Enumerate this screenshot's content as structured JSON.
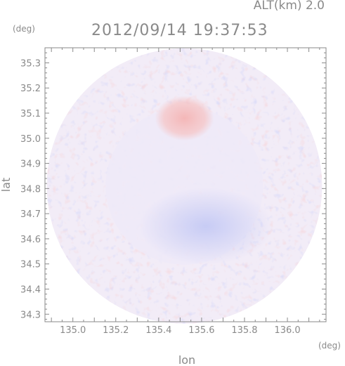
{
  "header": {
    "altitude_label": "ALT(km) 2.0",
    "timestamp": "2012/09/14 19:37:53"
  },
  "chart_data": {
    "type": "heatmap",
    "title": "2012/09/14 19:37:53",
    "subtitle": "ALT(km) 2.0",
    "xlabel": "lon",
    "ylabel": "lat",
    "x_unit": "(deg)",
    "y_unit": "(deg)",
    "xlim": [
      134.87,
      136.18
    ],
    "ylim": [
      34.27,
      35.36
    ],
    "x_ticks": [
      "135.0",
      "135.2",
      "135.4",
      "135.6",
      "135.8",
      "136.0"
    ],
    "x_tick_values": [
      135.0,
      135.2,
      135.4,
      135.6,
      135.8,
      136.0
    ],
    "y_ticks": [
      "34.3",
      "34.4",
      "34.5",
      "34.6",
      "34.7",
      "34.8",
      "34.9",
      "35.0",
      "35.1",
      "35.2",
      "35.3"
    ],
    "y_tick_values": [
      34.3,
      34.4,
      34.5,
      34.6,
      34.7,
      34.8,
      34.9,
      35.0,
      35.1,
      35.2,
      35.3
    ],
    "grid": false,
    "legend": "none",
    "domain_shape": "circle",
    "domain_center": [
      135.52,
      34.81
    ],
    "colors": {
      "background_field": "#f2ecf7",
      "positive": "#f5b8b8",
      "negative": "#bcc4f5",
      "axes": "#8a8a8a"
    },
    "features": [
      {
        "name": "positive-core",
        "center": [
          135.52,
          35.08
        ],
        "polarity": "positive"
      },
      {
        "name": "negative-band",
        "center": [
          135.62,
          34.65
        ],
        "polarity": "negative"
      }
    ]
  }
}
